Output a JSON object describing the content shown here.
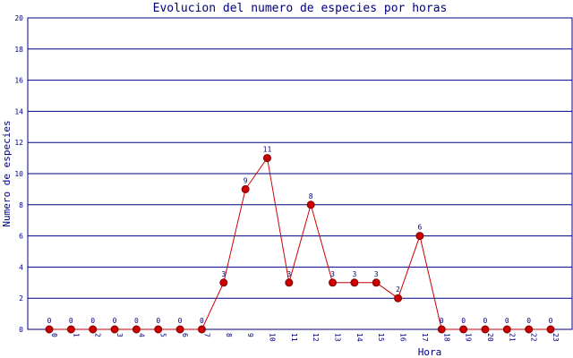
{
  "chart_data": {
    "type": "line",
    "title": "Evolucion del numero de especies por horas",
    "x_label": "Hora",
    "y_label": "Numero de especies",
    "categories": [
      "0",
      "1",
      "2",
      "3",
      "4",
      "5",
      "6",
      "7",
      "8",
      "9",
      "10",
      "11",
      "12",
      "13",
      "14",
      "15",
      "16",
      "17",
      "18",
      "19",
      "20",
      "21",
      "22",
      "23"
    ],
    "series": [
      {
        "name": "Numero de especies",
        "color": "#cc0000",
        "values": [
          0,
          0,
          0,
          0,
          0,
          0,
          0,
          0,
          3,
          9,
          11,
          3,
          8,
          3,
          3,
          3,
          2,
          6,
          0,
          0,
          0,
          0,
          0,
          0
        ]
      }
    ],
    "ylim": [
      0,
      20
    ],
    "yticks": [
      0,
      2,
      4,
      6,
      8,
      10,
      12,
      14,
      16,
      18,
      20
    ],
    "grid": true
  }
}
